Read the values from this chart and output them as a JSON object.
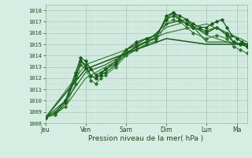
{
  "xlabel": "Pression niveau de la mer( hPa )",
  "ylim": [
    1008,
    1018.5
  ],
  "yticks": [
    1008,
    1009,
    1010,
    1011,
    1012,
    1013,
    1014,
    1015,
    1016,
    1017,
    1018
  ],
  "x_day_labels": [
    "Jeu",
    "Ven",
    "Sam",
    "Dim",
    "Lun",
    "Ma"
  ],
  "x_day_positions": [
    0,
    24,
    48,
    72,
    96,
    114
  ],
  "bg_color": "#d6ede3",
  "grid_color_major": "#a8ccba",
  "grid_color_minor": "#c2ddd2",
  "line_color_dark": "#1a5c1a",
  "line_color_med": "#2a7a2a",
  "xlim": [
    0,
    120
  ],
  "lines": [
    [
      0,
      1008.5,
      6,
      1009.0,
      12,
      1010.0,
      18,
      1012.5,
      21,
      1013.8,
      24,
      1013.5,
      27,
      1012.8,
      30,
      1012.3,
      33,
      1012.5,
      36,
      1012.8,
      42,
      1013.5,
      48,
      1014.5,
      54,
      1015.0,
      60,
      1015.5,
      66,
      1015.8,
      72,
      1017.2,
      76,
      1017.8,
      80,
      1017.5,
      84,
      1017.2,
      88,
      1016.8,
      92,
      1016.5,
      96,
      1016.5,
      99,
      1016.8,
      102,
      1017.0,
      105,
      1017.2,
      108,
      1016.5,
      111,
      1015.8,
      114,
      1015.5,
      117,
      1015.2,
      120,
      1015.0
    ],
    [
      0,
      1008.5,
      6,
      1008.8,
      12,
      1009.8,
      18,
      1012.0,
      21,
      1013.5,
      24,
      1013.2,
      27,
      1012.2,
      30,
      1012.0,
      33,
      1012.3,
      36,
      1012.5,
      42,
      1013.2,
      48,
      1014.2,
      54,
      1014.8,
      60,
      1015.2,
      66,
      1015.5,
      72,
      1017.5,
      76,
      1017.8,
      80,
      1017.2,
      84,
      1016.8,
      88,
      1016.5,
      96,
      1016.0,
      102,
      1016.5,
      108,
      1015.8,
      112,
      1015.2,
      116,
      1015.0,
      120,
      1014.8
    ],
    [
      0,
      1008.5,
      6,
      1008.8,
      12,
      1009.5,
      18,
      1011.5,
      21,
      1013.2,
      24,
      1012.8,
      27,
      1011.8,
      30,
      1011.5,
      33,
      1012.0,
      36,
      1012.3,
      42,
      1013.0,
      48,
      1014.0,
      54,
      1014.5,
      60,
      1015.0,
      66,
      1015.3,
      72,
      1016.8,
      76,
      1017.2,
      80,
      1017.0,
      84,
      1016.5,
      88,
      1016.0,
      96,
      1015.5,
      102,
      1015.8,
      108,
      1015.5,
      112,
      1014.8,
      116,
      1014.5,
      120,
      1014.2
    ],
    [
      0,
      1008.5,
      6,
      1009.0,
      12,
      1010.0,
      18,
      1012.2,
      21,
      1013.5,
      24,
      1013.0,
      27,
      1012.2,
      30,
      1012.0,
      33,
      1012.3,
      36,
      1012.8,
      42,
      1013.3,
      48,
      1014.5,
      54,
      1015.2,
      60,
      1015.5,
      66,
      1015.8,
      72,
      1017.2,
      76,
      1017.5,
      80,
      1017.2,
      84,
      1016.8,
      88,
      1016.5,
      96,
      1016.2,
      102,
      1016.5,
      108,
      1016.0,
      112,
      1015.2,
      116,
      1015.0,
      120,
      1014.8
    ],
    [
      0,
      1008.5,
      12,
      1009.5,
      24,
      1012.0,
      36,
      1013.0,
      48,
      1014.0,
      60,
      1015.0,
      72,
      1016.5,
      84,
      1017.0,
      96,
      1015.8,
      108,
      1015.2,
      120,
      1015.0
    ],
    [
      0,
      1008.5,
      12,
      1010.0,
      24,
      1012.5,
      36,
      1013.2,
      48,
      1014.2,
      60,
      1015.2,
      72,
      1016.8,
      84,
      1017.2,
      96,
      1015.2,
      108,
      1015.2,
      120,
      1015.0
    ],
    [
      0,
      1008.5,
      24,
      1012.8,
      48,
      1014.2,
      72,
      1015.5,
      96,
      1015.0,
      120,
      1015.0
    ],
    [
      0,
      1008.5,
      24,
      1013.2,
      48,
      1014.5,
      72,
      1016.0,
      96,
      1016.8,
      108,
      1016.0,
      116,
      1015.5,
      120,
      1015.2
    ]
  ],
  "marker_lines": [
    0,
    1,
    2,
    3
  ],
  "marker": "D",
  "marker_size": 1.8
}
